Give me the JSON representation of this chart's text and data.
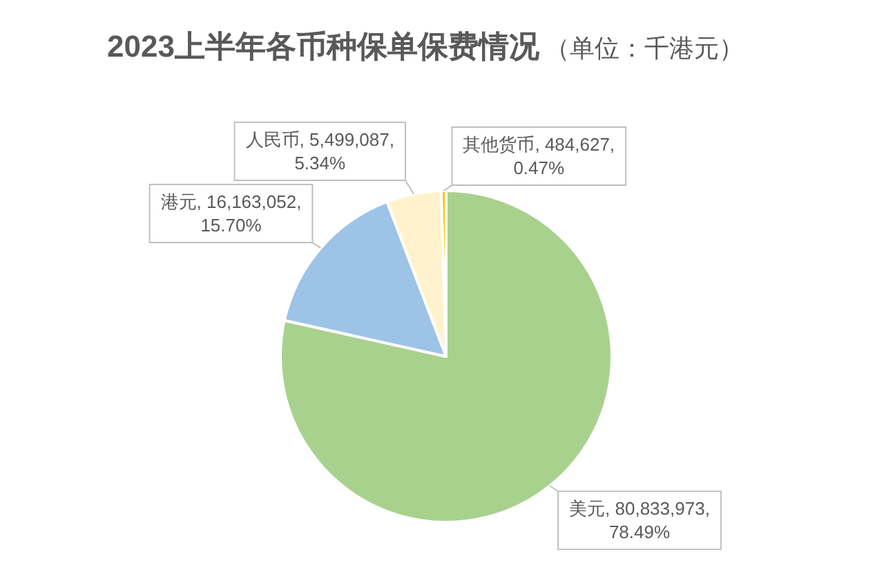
{
  "chart_data": {
    "type": "pie",
    "title": "2023上半年各币种保单保费情况",
    "subtitle": "（单位：千港元）",
    "categories": [
      "美元",
      "港元",
      "人民币",
      "其他货币"
    ],
    "values": [
      80833973,
      16163052,
      5499087,
      484627
    ],
    "colors": [
      "#a9d18e",
      "#9dc3e6",
      "#fff2cc",
      "#ffc000"
    ],
    "value_labels": [
      "80,833,973, 78.49%",
      "16,163,052, 15.70%",
      "5,499,087, 5.34%",
      "484,627, 0.47%"
    ]
  }
}
